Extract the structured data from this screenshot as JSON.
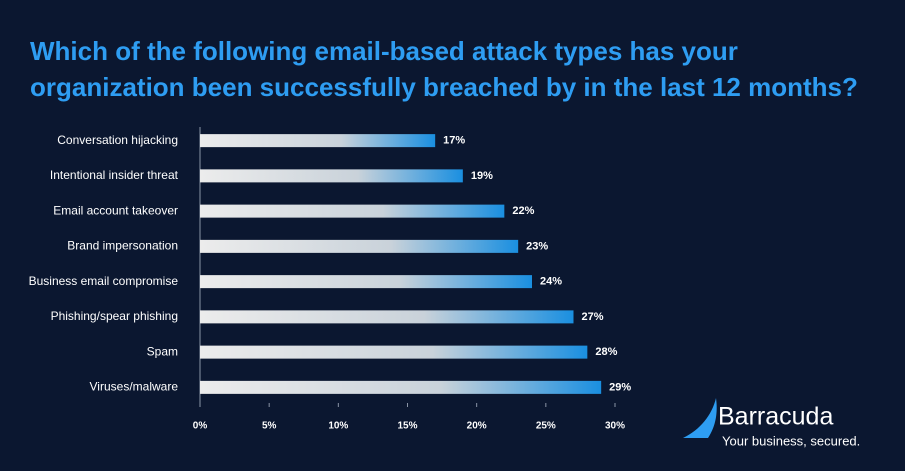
{
  "chart_data": {
    "type": "bar",
    "orientation": "horizontal",
    "title": "Which of the following email-based attack types has your organization been successfully breached by in the last 12 months?",
    "categories": [
      "Conversation hijacking",
      "Intentional insider threat",
      "Email account takeover",
      "Brand impersonation",
      "Business email compromise",
      "Phishing/spear phishing",
      "Spam",
      "Viruses/malware"
    ],
    "values": [
      17,
      19,
      22,
      23,
      24,
      27,
      28,
      29
    ],
    "value_labels": [
      "17%",
      "19%",
      "22%",
      "23%",
      "24%",
      "27%",
      "28%",
      "29%"
    ],
    "color": "#1a8fe0",
    "xlim": [
      0,
      30
    ],
    "xticks": [
      {
        "value": 0,
        "label": "0%"
      },
      {
        "value": 5,
        "label": "5%"
      },
      {
        "value": 10,
        "label": "10%"
      },
      {
        "value": 15,
        "label": "15%"
      },
      {
        "value": 20,
        "label": "20%"
      },
      {
        "value": 25,
        "label": "25%"
      },
      {
        "value": 30,
        "label": "30%"
      }
    ],
    "grid": false
  },
  "logo": {
    "name": "Barracuda",
    "tagline": "Your business, secured."
  }
}
